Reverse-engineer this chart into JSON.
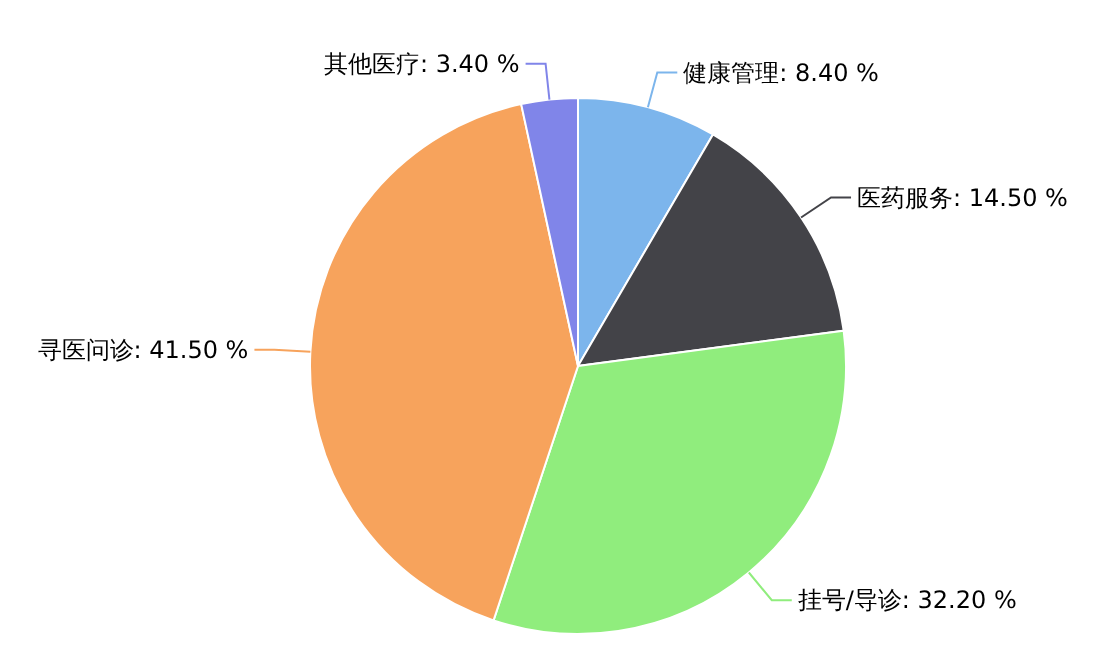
{
  "chart_data": {
    "type": "pie",
    "categories": [
      "健康管理",
      "医药服务",
      "挂号/导诊",
      "寻医问诊",
      "其他医疗"
    ],
    "values": [
      8.4,
      14.5,
      32.2,
      41.5,
      3.4
    ],
    "value_labels": [
      "8.40 %",
      "14.50 %",
      "32.20 %",
      "41.50 %",
      "3.40 %"
    ],
    "colors": [
      "#7cb5ec",
      "#434348",
      "#90ed7d",
      "#f7a35c",
      "#8085e9"
    ],
    "legend": false
  }
}
